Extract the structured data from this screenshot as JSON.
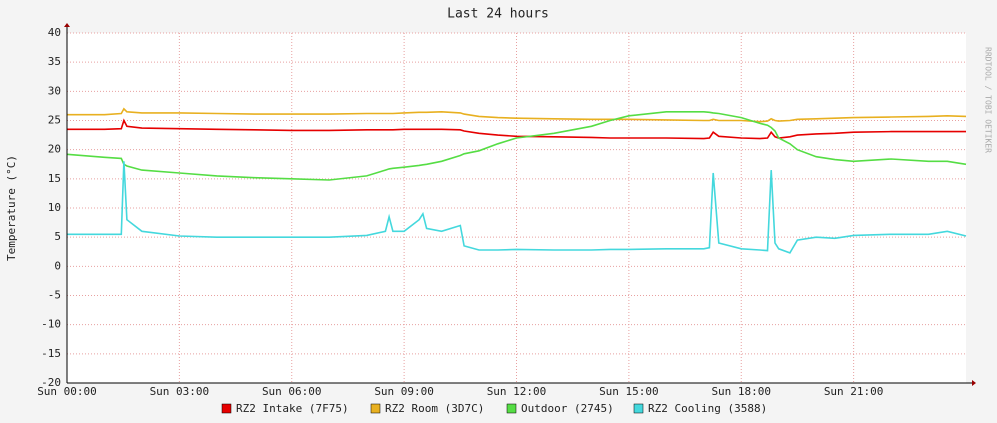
{
  "chart_data": {
    "type": "line",
    "title": "Last 24 hours",
    "y_label": "Temperature (°C)",
    "watermark": "RRDTOOL / TOBI OETIKER",
    "x": [
      0,
      1,
      1.45,
      1.52,
      1.6,
      2,
      3,
      4,
      5,
      6,
      7,
      8,
      8.5,
      8.6,
      8.7,
      9,
      9.4,
      9.5,
      9.6,
      10,
      10.5,
      10.6,
      11,
      11.5,
      12,
      13,
      14,
      14.5,
      15,
      16,
      17,
      17.15,
      17.25,
      17.4,
      18,
      18.5,
      18.7,
      18.8,
      18.9,
      19,
      19.3,
      19.5,
      20,
      20.5,
      21,
      22,
      23,
      23.5,
      24
    ],
    "xlim": [
      0,
      24
    ],
    "xticks": [
      {
        "value": 0,
        "label": "Sun 00:00"
      },
      {
        "value": 3,
        "label": "Sun 03:00"
      },
      {
        "value": 6,
        "label": "Sun 06:00"
      },
      {
        "value": 9,
        "label": "Sun 09:00"
      },
      {
        "value": 12,
        "label": "Sun 12:00"
      },
      {
        "value": 15,
        "label": "Sun 15:00"
      },
      {
        "value": 18,
        "label": "Sun 18:00"
      },
      {
        "value": 21,
        "label": "Sun 21:00"
      }
    ],
    "ylim": [
      -20,
      40
    ],
    "yticks": [
      -20,
      -15,
      -10,
      -5,
      0,
      5,
      10,
      15,
      20,
      25,
      30,
      35,
      40
    ],
    "grid": true,
    "series": [
      {
        "name": "RZ2 Intake (7F75)",
        "color": "#e60000",
        "values": [
          23.5,
          23.5,
          23.6,
          25,
          24,
          23.7,
          23.6,
          23.5,
          23.4,
          23.3,
          23.3,
          23.4,
          23.4,
          23.4,
          23.4,
          23.5,
          23.5,
          23.5,
          23.5,
          23.5,
          23.4,
          23.2,
          22.8,
          22.5,
          22.3,
          22.2,
          22.1,
          22,
          22,
          22,
          21.9,
          22,
          23,
          22.3,
          22,
          21.9,
          22,
          23,
          22.2,
          22,
          22.2,
          22.5,
          22.7,
          22.8,
          23,
          23.1,
          23.1,
          23.1,
          23.1
        ]
      },
      {
        "name": "RZ2 Room (3D7C)",
        "color": "#e8b020",
        "values": [
          26,
          26,
          26.2,
          27,
          26.5,
          26.3,
          26.3,
          26.2,
          26.1,
          26.1,
          26.1,
          26.2,
          26.2,
          26.2,
          26.2,
          26.3,
          26.4,
          26.4,
          26.4,
          26.5,
          26.3,
          26.1,
          25.7,
          25.5,
          25.4,
          25.3,
          25.2,
          25.2,
          25.2,
          25.1,
          25,
          25,
          25.2,
          25,
          25,
          24.8,
          24.9,
          25.3,
          25,
          24.9,
          25,
          25.2,
          25.3,
          25.4,
          25.5,
          25.6,
          25.7,
          25.8,
          25.7
        ]
      },
      {
        "name": "Outdoor (2745)",
        "color": "#55dd44",
        "values": [
          19.2,
          18.7,
          18.5,
          17.5,
          17.2,
          16.5,
          16,
          15.5,
          15.2,
          15,
          14.8,
          15.5,
          16.5,
          16.7,
          16.8,
          17,
          17.3,
          17.4,
          17.5,
          18,
          19,
          19.3,
          19.8,
          21,
          22,
          22.8,
          24,
          25,
          25.8,
          26.5,
          26.5,
          26.4,
          26.3,
          26.2,
          25.5,
          24.5,
          24.2,
          23.8,
          23.2,
          22,
          21,
          20,
          18.8,
          18.3,
          18,
          18.4,
          18,
          18,
          17.5
        ]
      },
      {
        "name": "RZ2 Cooling (3588)",
        "color": "#44d8dd",
        "values": [
          5.5,
          5.5,
          5.5,
          18,
          8,
          6,
          5.2,
          5,
          5,
          5,
          5,
          5.3,
          6,
          8.5,
          6,
          6,
          8,
          9,
          6.5,
          6,
          7,
          3.5,
          2.8,
          2.8,
          2.9,
          2.8,
          2.8,
          2.9,
          2.9,
          3,
          3,
          3.2,
          16,
          4,
          3,
          2.8,
          2.7,
          16.5,
          4,
          3,
          2.3,
          4.5,
          5,
          4.8,
          5.3,
          5.5,
          5.5,
          6,
          5.2
        ]
      }
    ]
  }
}
